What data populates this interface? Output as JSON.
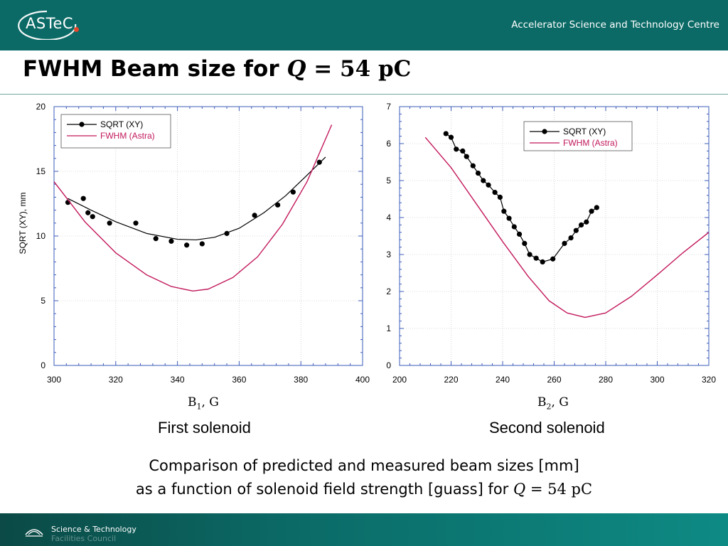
{
  "header": {
    "logo_text": "ASTeC",
    "right_text": "Accelerator Science and Technology Centre",
    "accent_color": "#e8472b",
    "bg_color": "#0b6a66"
  },
  "title": {
    "prefix": "FWHM Beam size for ",
    "q": "Q",
    "eq": " = 54 pC"
  },
  "caption": {
    "line1": "Comparison of predicted and measured beam sizes [mm]",
    "line2_prefix": "as a function of solenoid field strength [guass] for ",
    "q": "Q",
    "eq": " = 54 pC"
  },
  "footer": {
    "line1": "Science & Technology",
    "line2": "Facilities Council"
  },
  "chart_data": [
    {
      "type": "scatter",
      "xlabel": "B1 , G",
      "xlabel_base": "B",
      "xlabel_sub": "1",
      "xlabel_rest": ", G",
      "subtitle": "First solenoid",
      "ylabel": "SQRT (XY), mm",
      "xlim": [
        300,
        400
      ],
      "ylim": [
        0,
        20
      ],
      "xticks": [
        300,
        320,
        340,
        360,
        380,
        400
      ],
      "yticks": [
        0,
        5,
        10,
        15,
        20
      ],
      "legend_position": "top-left",
      "series": [
        {
          "name": "SQRT (XY)",
          "kind": "points+fit",
          "color": "#000000",
          "points": [
            [
              304.5,
              12.6
            ],
            [
              309.5,
              12.9
            ],
            [
              311,
              11.8
            ],
            [
              312.5,
              11.5
            ],
            [
              318,
              11.0
            ],
            [
              326.5,
              11.0
            ],
            [
              333,
              9.8
            ],
            [
              338,
              9.6
            ],
            [
              343,
              9.3
            ],
            [
              348,
              9.4
            ],
            [
              356,
              10.2
            ],
            [
              365,
              11.6
            ],
            [
              372.5,
              12.4
            ],
            [
              377.5,
              13.4
            ],
            [
              386,
              15.7
            ]
          ],
          "fit": [
            [
              304.5,
              12.9
            ],
            [
              312,
              12.0
            ],
            [
              320,
              11.1
            ],
            [
              330,
              10.2
            ],
            [
              340,
              9.75
            ],
            [
              346,
              9.7
            ],
            [
              352,
              9.9
            ],
            [
              360,
              10.6
            ],
            [
              368,
              11.8
            ],
            [
              375,
              13.1
            ],
            [
              382,
              14.7
            ],
            [
              388,
              16.1
            ]
          ]
        },
        {
          "name": "FWHM (Astra)",
          "kind": "line",
          "color": "#c2185b",
          "points": [
            [
              300,
              14.2
            ],
            [
              310,
              11.1
            ],
            [
              320,
              8.7
            ],
            [
              330,
              7.0
            ],
            [
              338,
              6.1
            ],
            [
              345,
              5.75
            ],
            [
              350,
              5.9
            ],
            [
              358,
              6.8
            ],
            [
              366,
              8.4
            ],
            [
              374,
              10.9
            ],
            [
              382,
              14.2
            ],
            [
              390,
              18.6
            ]
          ]
        }
      ]
    },
    {
      "type": "scatter",
      "xlabel": "B2 , G",
      "xlabel_base": "B",
      "xlabel_sub": "2",
      "xlabel_rest": ", G",
      "subtitle": "Second solenoid",
      "ylabel": "",
      "xlim": [
        200,
        320
      ],
      "ylim": [
        0,
        7
      ],
      "xticks": [
        200,
        220,
        240,
        260,
        280,
        300,
        320
      ],
      "yticks": [
        0,
        1,
        2,
        3,
        4,
        5,
        6,
        7
      ],
      "legend_position": "top-right",
      "series": [
        {
          "name": "SQRT (XY)",
          "kind": "points+connect",
          "color": "#000000",
          "points": [
            [
              218,
              6.27
            ],
            [
              220,
              6.17
            ],
            [
              222,
              5.85
            ],
            [
              224.5,
              5.8
            ],
            [
              226,
              5.65
            ],
            [
              228.5,
              5.4
            ],
            [
              230.5,
              5.2
            ],
            [
              232.5,
              5.0
            ],
            [
              234.5,
              4.88
            ],
            [
              237,
              4.68
            ],
            [
              239,
              4.55
            ],
            [
              240.5,
              4.17
            ],
            [
              242.5,
              3.98
            ],
            [
              244.5,
              3.75
            ],
            [
              246.5,
              3.55
            ],
            [
              248.5,
              3.3
            ],
            [
              250.5,
              3.0
            ],
            [
              253,
              2.9
            ],
            [
              255.5,
              2.8
            ],
            [
              259.5,
              2.88
            ],
            [
              264,
              3.3
            ],
            [
              266.5,
              3.45
            ],
            [
              268.5,
              3.65
            ],
            [
              270.5,
              3.8
            ],
            [
              272.5,
              3.88
            ],
            [
              274.5,
              4.17
            ],
            [
              276.5,
              4.27
            ]
          ]
        },
        {
          "name": "FWHM (Astra)",
          "kind": "line",
          "color": "#c2185b",
          "points": [
            [
              210,
              6.17
            ],
            [
              220,
              5.35
            ],
            [
              230,
              4.35
            ],
            [
              240,
              3.35
            ],
            [
              250,
              2.4
            ],
            [
              258,
              1.75
            ],
            [
              265,
              1.42
            ],
            [
              272,
              1.3
            ],
            [
              280,
              1.42
            ],
            [
              290,
              1.87
            ],
            [
              300,
              2.45
            ],
            [
              310,
              3.05
            ],
            [
              320,
              3.6
            ]
          ]
        }
      ]
    }
  ]
}
